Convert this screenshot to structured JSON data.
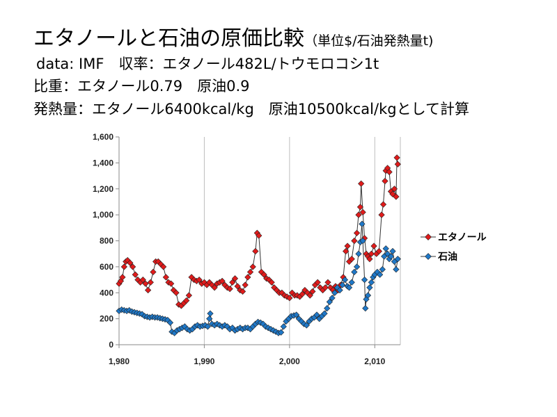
{
  "header": {
    "title": "エタノールと石油の原価比較",
    "title_suffix": "（単位$/石油発熱量t)",
    "line2": "data: IMF　収率：エタノール482L/トウモロコシ1t",
    "line3": "比重：エタノール0.79　原油0.9",
    "line4": "発熱量：エタノール6400kcal/kg　原油10500kcal/kgとして計算"
  },
  "chart_data": {
    "type": "line",
    "title": "",
    "xlabel": "",
    "ylabel": "",
    "xlim": [
      1980,
      2013
    ],
    "ylim": [
      0,
      1600
    ],
    "x_ticks": [
      1980,
      1990,
      2000,
      2010
    ],
    "x_tick_labels": [
      "1,980",
      "1,990",
      "2,000",
      "2,010"
    ],
    "y_ticks": [
      0,
      200,
      400,
      600,
      800,
      1000,
      1200,
      1400,
      1600
    ],
    "y_tick_labels": [
      "0",
      "200",
      "400",
      "600",
      "800",
      "1,000",
      "1,200",
      "1,400",
      "1,600"
    ],
    "grid": "vertical",
    "legend_position": "right",
    "series": [
      {
        "name": "エタノール",
        "color": "#e01b1b",
        "marker": "diamond",
        "points": [
          [
            1980.0,
            470
          ],
          [
            1980.2,
            490
          ],
          [
            1980.4,
            520
          ],
          [
            1980.6,
            600
          ],
          [
            1980.8,
            640
          ],
          [
            1981.0,
            650
          ],
          [
            1981.3,
            630
          ],
          [
            1981.6,
            600
          ],
          [
            1981.9,
            540
          ],
          [
            1982.2,
            500
          ],
          [
            1982.5,
            480
          ],
          [
            1982.8,
            500
          ],
          [
            1983.1,
            470
          ],
          [
            1983.4,
            420
          ],
          [
            1983.7,
            480
          ],
          [
            1984.0,
            560
          ],
          [
            1984.3,
            640
          ],
          [
            1984.6,
            640
          ],
          [
            1984.9,
            620
          ],
          [
            1985.2,
            600
          ],
          [
            1985.5,
            520
          ],
          [
            1985.8,
            480
          ],
          [
            1986.1,
            470
          ],
          [
            1986.4,
            420
          ],
          [
            1986.7,
            400
          ],
          [
            1987.0,
            310
          ],
          [
            1987.3,
            300
          ],
          [
            1987.6,
            320
          ],
          [
            1987.9,
            340
          ],
          [
            1988.2,
            380
          ],
          [
            1988.5,
            520
          ],
          [
            1988.8,
            500
          ],
          [
            1989.1,
            490
          ],
          [
            1989.4,
            500
          ],
          [
            1989.7,
            470
          ],
          [
            1990.0,
            480
          ],
          [
            1990.3,
            460
          ],
          [
            1990.6,
            480
          ],
          [
            1990.9,
            460
          ],
          [
            1991.2,
            440
          ],
          [
            1991.5,
            470
          ],
          [
            1991.8,
            480
          ],
          [
            1992.1,
            490
          ],
          [
            1992.4,
            460
          ],
          [
            1992.7,
            440
          ],
          [
            1993.0,
            430
          ],
          [
            1993.3,
            480
          ],
          [
            1993.6,
            510
          ],
          [
            1993.9,
            450
          ],
          [
            1994.2,
            420
          ],
          [
            1994.5,
            410
          ],
          [
            1994.8,
            460
          ],
          [
            1995.1,
            520
          ],
          [
            1995.4,
            560
          ],
          [
            1995.7,
            600
          ],
          [
            1996.0,
            720
          ],
          [
            1996.2,
            860
          ],
          [
            1996.4,
            840
          ],
          [
            1996.7,
            560
          ],
          [
            1997.0,
            540
          ],
          [
            1997.3,
            510
          ],
          [
            1997.6,
            500
          ],
          [
            1997.9,
            480
          ],
          [
            1998.2,
            440
          ],
          [
            1998.5,
            420
          ],
          [
            1998.8,
            400
          ],
          [
            1999.1,
            400
          ],
          [
            1999.4,
            380
          ],
          [
            1999.7,
            370
          ],
          [
            2000.0,
            360
          ],
          [
            2000.3,
            400
          ],
          [
            2000.6,
            380
          ],
          [
            2000.9,
            380
          ],
          [
            2001.2,
            370
          ],
          [
            2001.5,
            390
          ],
          [
            2001.8,
            420
          ],
          [
            2002.1,
            400
          ],
          [
            2002.4,
            380
          ],
          [
            2002.7,
            410
          ],
          [
            2003.0,
            460
          ],
          [
            2003.3,
            480
          ],
          [
            2003.6,
            440
          ],
          [
            2003.9,
            420
          ],
          [
            2004.2,
            440
          ],
          [
            2004.5,
            480
          ],
          [
            2004.8,
            440
          ],
          [
            2005.1,
            420
          ],
          [
            2005.4,
            450
          ],
          [
            2005.7,
            420
          ],
          [
            2006.0,
            460
          ],
          [
            2006.3,
            520
          ],
          [
            2006.6,
            720
          ],
          [
            2006.8,
            760
          ],
          [
            2007.0,
            640
          ],
          [
            2007.3,
            660
          ],
          [
            2007.6,
            800
          ],
          [
            2007.9,
            860
          ],
          [
            2008.1,
            1000
          ],
          [
            2008.3,
            1060
          ],
          [
            2008.4,
            1240
          ],
          [
            2008.6,
            1020
          ],
          [
            2008.8,
            820
          ],
          [
            2009.0,
            700
          ],
          [
            2009.2,
            680
          ],
          [
            2009.4,
            660
          ],
          [
            2009.6,
            700
          ],
          [
            2009.9,
            760
          ],
          [
            2010.2,
            700
          ],
          [
            2010.5,
            720
          ],
          [
            2010.8,
            1000
          ],
          [
            2011.0,
            1080
          ],
          [
            2011.2,
            1260
          ],
          [
            2011.3,
            1340
          ],
          [
            2011.5,
            1360
          ],
          [
            2011.7,
            1330
          ],
          [
            2011.9,
            1180
          ],
          [
            2012.1,
            1160
          ],
          [
            2012.3,
            1200
          ],
          [
            2012.5,
            1140
          ],
          [
            2012.6,
            1440
          ],
          [
            2012.7,
            1390
          ]
        ]
      },
      {
        "name": "石油",
        "color": "#1f78c8",
        "marker": "diamond",
        "points": [
          [
            1980.0,
            260
          ],
          [
            1980.3,
            270
          ],
          [
            1980.6,
            265
          ],
          [
            1980.9,
            260
          ],
          [
            1981.2,
            265
          ],
          [
            1981.5,
            255
          ],
          [
            1981.8,
            250
          ],
          [
            1982.1,
            245
          ],
          [
            1982.4,
            240
          ],
          [
            1982.7,
            235
          ],
          [
            1983.0,
            220
          ],
          [
            1983.3,
            215
          ],
          [
            1983.6,
            210
          ],
          [
            1983.9,
            215
          ],
          [
            1984.2,
            210
          ],
          [
            1984.5,
            210
          ],
          [
            1984.8,
            205
          ],
          [
            1985.1,
            200
          ],
          [
            1985.4,
            195
          ],
          [
            1985.7,
            190
          ],
          [
            1986.0,
            170
          ],
          [
            1986.2,
            100
          ],
          [
            1986.5,
            90
          ],
          [
            1986.8,
            110
          ],
          [
            1987.1,
            120
          ],
          [
            1987.4,
            130
          ],
          [
            1987.7,
            140
          ],
          [
            1988.0,
            120
          ],
          [
            1988.3,
            110
          ],
          [
            1988.6,
            120
          ],
          [
            1988.9,
            140
          ],
          [
            1989.2,
            150
          ],
          [
            1989.5,
            140
          ],
          [
            1989.8,
            145
          ],
          [
            1990.1,
            150
          ],
          [
            1990.4,
            140
          ],
          [
            1990.6,
            200
          ],
          [
            1990.7,
            240
          ],
          [
            1990.9,
            160
          ],
          [
            1991.2,
            150
          ],
          [
            1991.5,
            160
          ],
          [
            1991.8,
            150
          ],
          [
            1992.1,
            140
          ],
          [
            1992.4,
            150
          ],
          [
            1992.7,
            140
          ],
          [
            1993.0,
            120
          ],
          [
            1993.3,
            130
          ],
          [
            1993.6,
            110
          ],
          [
            1993.9,
            120
          ],
          [
            1994.2,
            130
          ],
          [
            1994.5,
            120
          ],
          [
            1994.8,
            130
          ],
          [
            1995.1,
            130
          ],
          [
            1995.4,
            120
          ],
          [
            1995.7,
            140
          ],
          [
            1996.0,
            160
          ],
          [
            1996.3,
            175
          ],
          [
            1996.6,
            170
          ],
          [
            1996.9,
            160
          ],
          [
            1997.2,
            140
          ],
          [
            1997.5,
            130
          ],
          [
            1997.8,
            120
          ],
          [
            1998.1,
            110
          ],
          [
            1998.4,
            100
          ],
          [
            1998.7,
            90
          ],
          [
            1999.0,
            95
          ],
          [
            1999.3,
            140
          ],
          [
            1999.6,
            180
          ],
          [
            1999.9,
            200
          ],
          [
            2000.2,
            220
          ],
          [
            2000.5,
            225
          ],
          [
            2000.8,
            230
          ],
          [
            2001.1,
            200
          ],
          [
            2001.4,
            180
          ],
          [
            2001.7,
            160
          ],
          [
            2002.0,
            150
          ],
          [
            2002.3,
            180
          ],
          [
            2002.6,
            200
          ],
          [
            2002.9,
            210
          ],
          [
            2003.2,
            230
          ],
          [
            2003.5,
            200
          ],
          [
            2003.8,
            220
          ],
          [
            2004.1,
            240
          ],
          [
            2004.4,
            280
          ],
          [
            2004.7,
            330
          ],
          [
            2005.0,
            360
          ],
          [
            2005.3,
            400
          ],
          [
            2005.6,
            440
          ],
          [
            2005.9,
            420
          ],
          [
            2006.2,
            460
          ],
          [
            2006.5,
            500
          ],
          [
            2006.8,
            450
          ],
          [
            2007.0,
            440
          ],
          [
            2007.3,
            480
          ],
          [
            2007.6,
            560
          ],
          [
            2007.9,
            600
          ],
          [
            2008.1,
            700
          ],
          [
            2008.3,
            790
          ],
          [
            2008.5,
            930
          ],
          [
            2008.6,
            800
          ],
          [
            2008.8,
            500
          ],
          [
            2008.9,
            280
          ],
          [
            2009.0,
            350
          ],
          [
            2009.2,
            380
          ],
          [
            2009.4,
            440
          ],
          [
            2009.6,
            480
          ],
          [
            2009.8,
            520
          ],
          [
            2010.0,
            540
          ],
          [
            2010.3,
            560
          ],
          [
            2010.6,
            540
          ],
          [
            2010.9,
            580
          ],
          [
            2011.1,
            680
          ],
          [
            2011.3,
            740
          ],
          [
            2011.5,
            700
          ],
          [
            2011.7,
            660
          ],
          [
            2011.9,
            680
          ],
          [
            2012.1,
            720
          ],
          [
            2012.3,
            640
          ],
          [
            2012.5,
            580
          ],
          [
            2012.7,
            660
          ]
        ]
      }
    ]
  }
}
